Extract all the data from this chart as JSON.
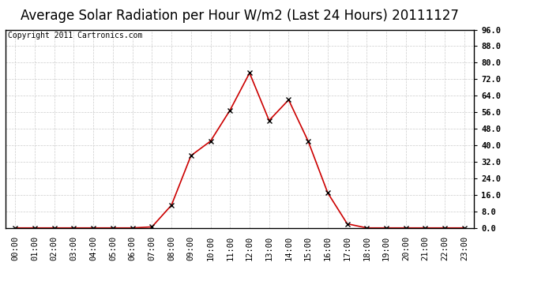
{
  "title": "Average Solar Radiation per Hour W/m2 (Last 24 Hours) 20111127",
  "copyright": "Copyright 2011 Cartronics.com",
  "x_labels": [
    "00:00",
    "01:00",
    "02:00",
    "03:00",
    "04:00",
    "05:00",
    "06:00",
    "07:00",
    "08:00",
    "09:00",
    "10:00",
    "11:00",
    "12:00",
    "13:00",
    "14:00",
    "15:00",
    "16:00",
    "17:00",
    "18:00",
    "19:00",
    "20:00",
    "21:00",
    "22:00",
    "23:00"
  ],
  "y_values": [
    0.0,
    0.0,
    0.0,
    0.0,
    0.0,
    0.0,
    0.0,
    0.5,
    11.0,
    35.0,
    42.0,
    57.0,
    75.0,
    52.0,
    62.0,
    42.0,
    17.0,
    2.0,
    0.0,
    0.0,
    0.0,
    0.0,
    0.0,
    0.0
  ],
  "line_color": "#cc0000",
  "marker": "x",
  "marker_color": "#000000",
  "background_color": "#ffffff",
  "plot_bg_color": "#ffffff",
  "grid_color": "#cccccc",
  "title_color": "#000000",
  "y_min": 0.0,
  "y_max": 96.0,
  "y_ticks": [
    0.0,
    8.0,
    16.0,
    24.0,
    32.0,
    40.0,
    48.0,
    56.0,
    64.0,
    72.0,
    80.0,
    88.0,
    96.0
  ],
  "title_fontsize": 12,
  "copyright_fontsize": 7,
  "tick_fontsize": 7.5
}
